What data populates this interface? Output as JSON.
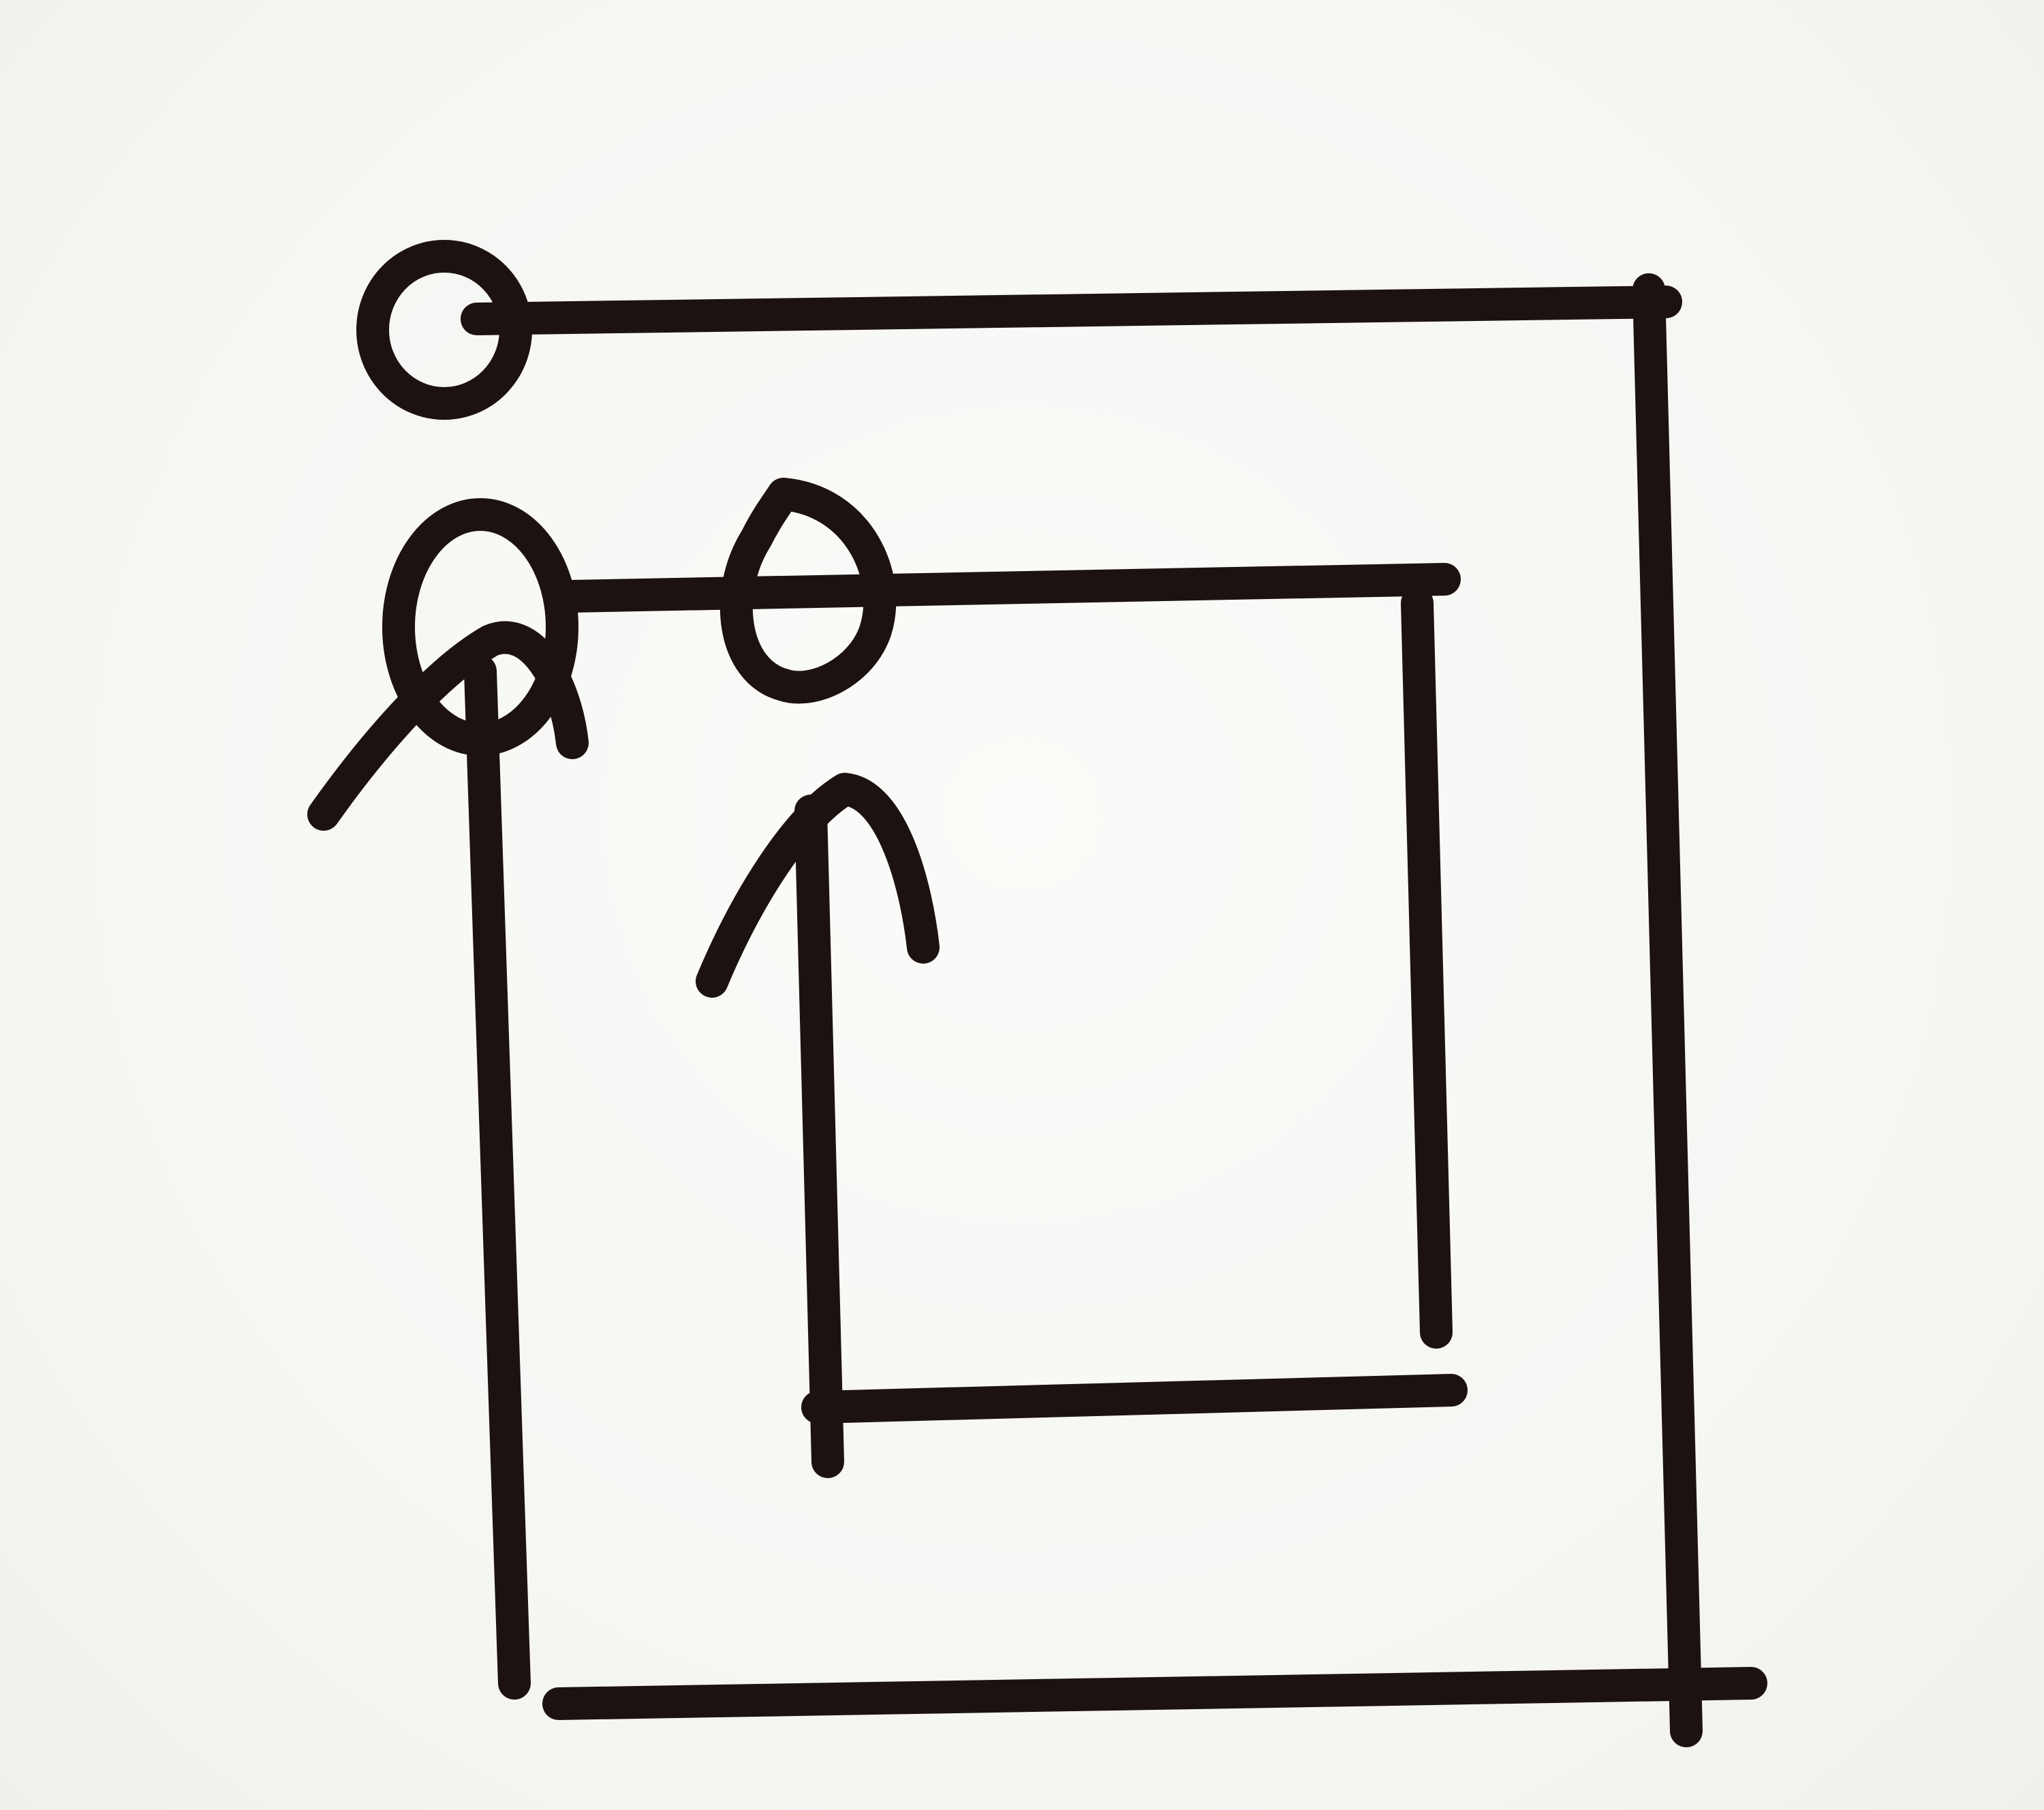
{
  "colors": {
    "background": "#f7f7f5",
    "ink": "#1d1212"
  },
  "diagram": {
    "kind": "hand-drawn line diagram",
    "text": []
  }
}
